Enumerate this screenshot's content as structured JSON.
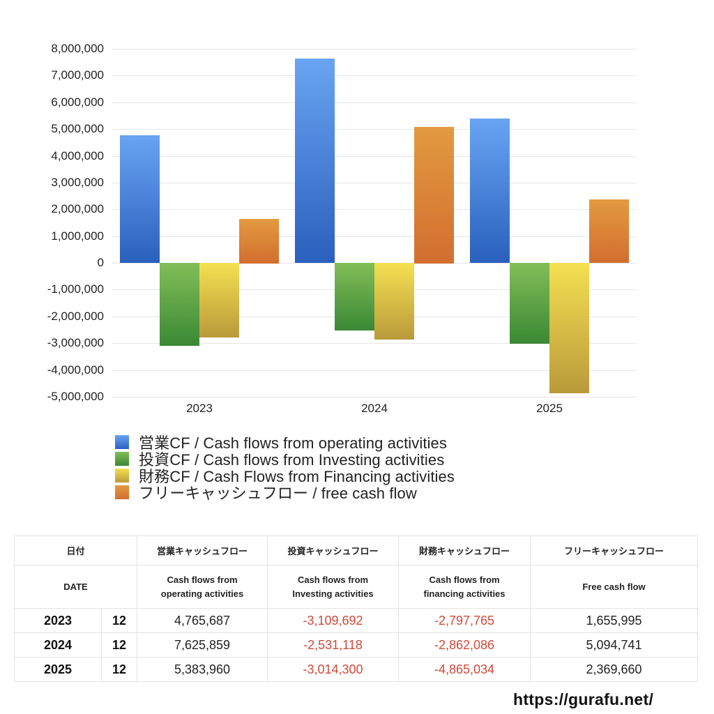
{
  "chart_data": {
    "type": "bar",
    "title": "",
    "xlabel": "",
    "ylabel": "",
    "ylim": [
      -5000000,
      8000000
    ],
    "yticks": [
      8000000,
      7000000,
      6000000,
      5000000,
      4000000,
      3000000,
      2000000,
      1000000,
      0,
      -1000000,
      -2000000,
      -3000000,
      -4000000,
      -5000000
    ],
    "ytick_labels": [
      "8,000,000",
      "7,000,000",
      "6,000,000",
      "5,000,000",
      "4,000,000",
      "3,000,000",
      "2,000,000",
      "1,000,000",
      "0",
      "-1,000,000",
      "-2,000,000",
      "-3,000,000",
      "-4,000,000",
      "-5,000,000"
    ],
    "grid": true,
    "legend_position": "bottom",
    "categories": [
      "2023",
      "2024",
      "2025"
    ],
    "series": [
      {
        "name": "営業CF / Cash flows from operating activities",
        "values": [
          4765687,
          7625859,
          5383960
        ],
        "color_top": "#69a4f2",
        "color_bottom": "#2a60bd"
      },
      {
        "name": "投資CF / Cash flows from Investing activities",
        "values": [
          -3109692,
          -2531118,
          -3014300
        ],
        "color_top": "#82be58",
        "color_bottom": "#3b8835"
      },
      {
        "name": "財務CF / Cash Flows from Financing activities",
        "values": [
          -2797765,
          -2862086,
          -4865034
        ],
        "color_top": "#f5e052",
        "color_bottom": "#b99a3a"
      },
      {
        "name": "フリーキャッシュフロー / free cash flow",
        "values": [
          1655995,
          5094741,
          2369660
        ],
        "color_top": "#e39a40",
        "color_bottom": "#d26e30"
      }
    ]
  },
  "table": {
    "headers_ja": [
      "日付",
      "営業キャッシュフロー",
      "投資キャッシュフロー",
      "財務キャッシュフロー",
      "フリーキャッシュフロー"
    ],
    "headers_en": [
      "DATE",
      "Cash flows from",
      "operating activities",
      "Cash flows from",
      "Investing activities",
      "Cash flows from",
      "financing activities",
      "Free cash flow"
    ],
    "rows": [
      {
        "year": "2023",
        "month": "12",
        "operating": "4,765,687",
        "investing": "-3,109,692",
        "financing": "-2,797,765",
        "free": "1,655,995"
      },
      {
        "year": "2024",
        "month": "12",
        "operating": "7,625,859",
        "investing": "-2,531,118",
        "financing": "-2,862,086",
        "free": "5,094,741"
      },
      {
        "year": "2025",
        "month": "12",
        "operating": "5,383,960",
        "investing": "-3,014,300",
        "financing": "-4,865,034",
        "free": "2,369,660"
      }
    ]
  },
  "footer": {
    "url": "https://gurafu.net/"
  }
}
